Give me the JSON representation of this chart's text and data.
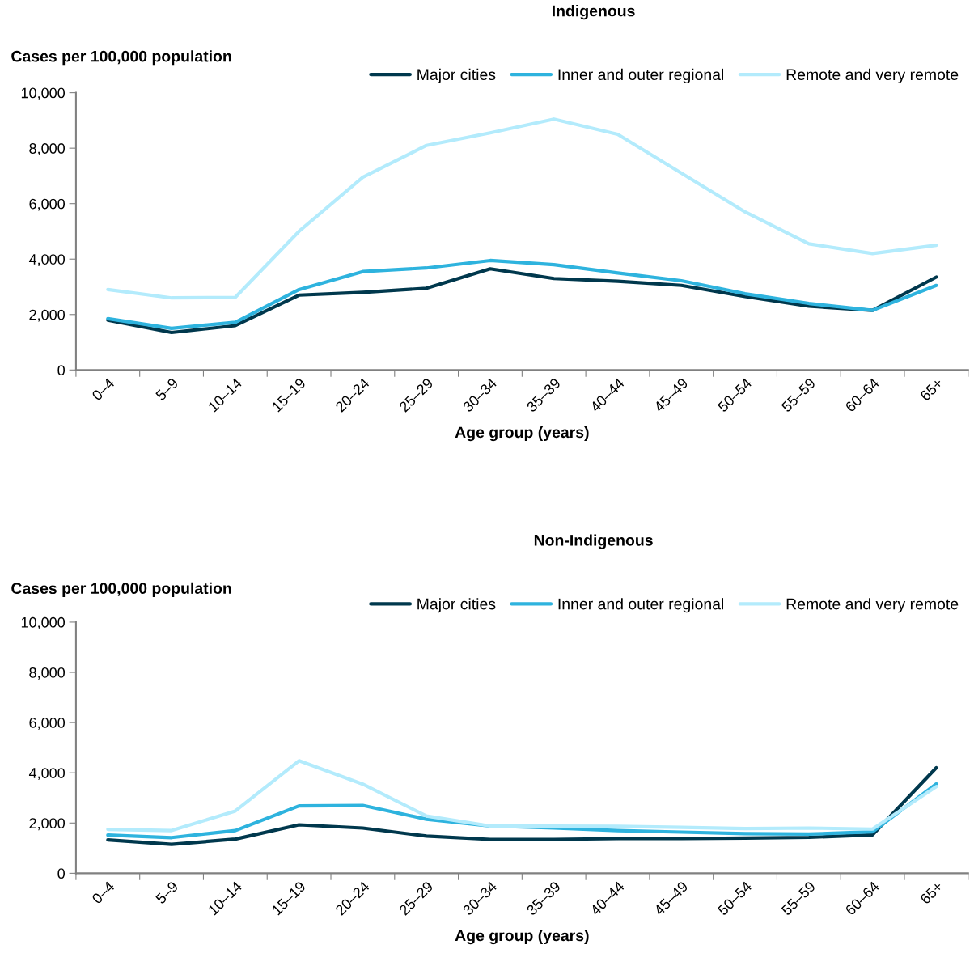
{
  "chart_data": [
    {
      "type": "line",
      "title": "Indigenous",
      "ylabel": "Cases per 100,000 population",
      "xlabel": "Age group (years)",
      "categories": [
        "0–4",
        "5–9",
        "10–14",
        "15–19",
        "20–24",
        "25–29",
        "30–34",
        "35–39",
        "40–44",
        "45–49",
        "50–54",
        "55–59",
        "60–64",
        "65+"
      ],
      "series": [
        {
          "name": "Major cities",
          "color": "#00384d",
          "values": [
            1800,
            1350,
            1600,
            2700,
            2800,
            2950,
            3650,
            3300,
            3200,
            3050,
            2650,
            2300,
            2150,
            3350
          ]
        },
        {
          "name": "Inner and outer regional",
          "color": "#2eb3de",
          "values": [
            1850,
            1500,
            1720,
            2900,
            3550,
            3680,
            3950,
            3800,
            3500,
            3220,
            2750,
            2400,
            2150,
            3050
          ]
        },
        {
          "name": "Remote and very remote",
          "color": "#b3ebfc",
          "values": [
            2900,
            2600,
            2620,
            5000,
            6950,
            8100,
            8550,
            9050,
            8500,
            7100,
            5700,
            4550,
            4200,
            4500
          ]
        }
      ],
      "ylim": [
        0,
        10000
      ],
      "yticks": [
        {
          "value": 0,
          "label": "0"
        },
        {
          "value": 2000,
          "label": "2,000"
        },
        {
          "value": 4000,
          "label": "4,000"
        },
        {
          "value": 6000,
          "label": "6,000"
        },
        {
          "value": 8000,
          "label": "8,000"
        },
        {
          "value": 10000,
          "label": "10,000"
        }
      ],
      "grid": false,
      "legend": "top right"
    },
    {
      "type": "line",
      "title": "Non-Indigenous",
      "ylabel": "Cases per 100,000 population",
      "xlabel": "Age group (years)",
      "categories": [
        "0–4",
        "5–9",
        "10–14",
        "15–19",
        "20–24",
        "25–29",
        "30–34",
        "35–39",
        "40–44",
        "45–49",
        "50–54",
        "55–59",
        "60–64",
        "65+"
      ],
      "series": [
        {
          "name": "Major cities",
          "color": "#00384d",
          "values": [
            1330,
            1150,
            1360,
            1930,
            1800,
            1480,
            1350,
            1350,
            1380,
            1380,
            1400,
            1430,
            1530,
            4200
          ]
        },
        {
          "name": "Inner and outer regional",
          "color": "#2eb3de",
          "values": [
            1520,
            1420,
            1700,
            2680,
            2700,
            2150,
            1880,
            1800,
            1700,
            1640,
            1580,
            1560,
            1650,
            3560
          ]
        },
        {
          "name": "Remote and very remote",
          "color": "#b3ebfc",
          "values": [
            1750,
            1700,
            2480,
            4480,
            3550,
            2280,
            1880,
            1880,
            1870,
            1830,
            1780,
            1800,
            1760,
            3450
          ]
        }
      ],
      "ylim": [
        0,
        10000
      ],
      "yticks": [
        {
          "value": 0,
          "label": "0"
        },
        {
          "value": 2000,
          "label": "2,000"
        },
        {
          "value": 4000,
          "label": "4,000"
        },
        {
          "value": 6000,
          "label": "6,000"
        },
        {
          "value": 8000,
          "label": "8,000"
        },
        {
          "value": 10000,
          "label": "10,000"
        }
      ],
      "grid": false,
      "legend": "top right"
    }
  ]
}
